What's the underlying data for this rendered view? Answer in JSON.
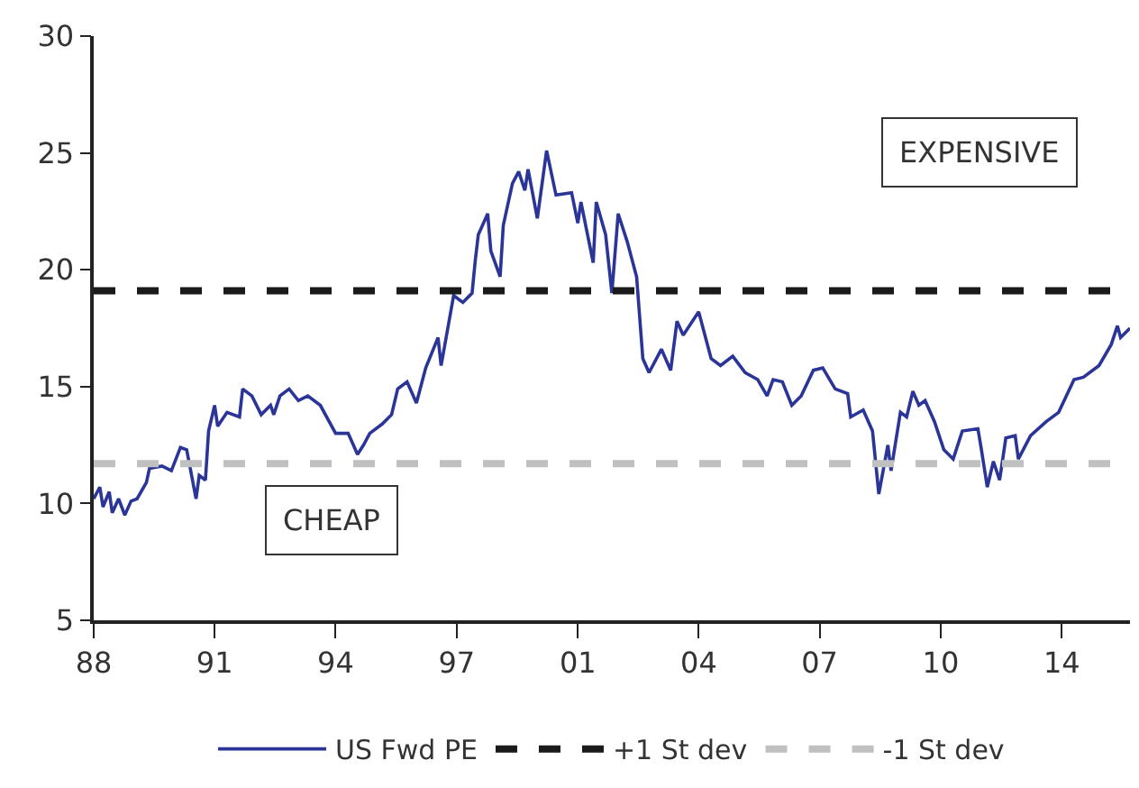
{
  "chart_data": {
    "type": "line",
    "x": [
      "1988-01",
      "1988-03",
      "1988-04",
      "1988-06",
      "1988-07",
      "1988-09",
      "1988-11",
      "1989-01",
      "1989-03",
      "1989-06",
      "1989-07",
      "1989-11",
      "1990-02",
      "1990-05",
      "1990-07",
      "1990-10",
      "1990-11",
      "1991-01",
      "1991-02",
      "1991-04",
      "1991-05",
      "1991-08",
      "1991-12",
      "1992-01",
      "1992-04",
      "1992-07",
      "1992-10",
      "1992-11",
      "1993-01",
      "1993-04",
      "1993-07",
      "1993-10",
      "1994-02",
      "1994-07",
      "1994-11",
      "1995-02",
      "1995-04",
      "1995-06",
      "1995-10",
      "1996-01",
      "1996-03",
      "1996-06",
      "1996-09",
      "1996-12",
      "1997-04",
      "1997-05",
      "1997-09",
      "1997-12",
      "1998-03",
      "1998-04",
      "1998-05",
      "1998-08",
      "1998-09",
      "1998-12",
      "1999-01",
      "1999-04",
      "1999-06",
      "1999-08",
      "1999-09",
      "1999-12",
      "2000-03",
      "2000-06",
      "2000-11",
      "2001-01",
      "2001-02",
      "2001-06",
      "2001-07",
      "2001-10",
      "2001-12",
      "2002-02",
      "2002-05",
      "2002-08",
      "2002-10",
      "2002-12",
      "2003-04",
      "2003-07",
      "2003-09",
      "2003-11",
      "2004-04",
      "2004-08",
      "2004-11",
      "2005-03",
      "2005-07",
      "2005-11",
      "2006-02",
      "2006-04",
      "2006-07",
      "2006-10",
      "2007-01",
      "2007-05",
      "2007-08",
      "2007-12",
      "2008-04",
      "2008-05",
      "2008-09",
      "2008-12",
      "2009-02",
      "2009-05",
      "2009-06",
      "2009-09",
      "2009-11",
      "2010-01",
      "2010-03",
      "2010-05",
      "2010-08",
      "2010-11",
      "2011-02",
      "2011-05",
      "2011-10",
      "2011-11",
      "2012-01",
      "2012-03",
      "2012-05",
      "2012-07",
      "2012-10",
      "2012-11",
      "2013-03",
      "2013-08",
      "2013-12",
      "2014-05",
      "2014-08",
      "2015-01",
      "2015-05",
      "2015-07",
      "2015-08",
      "2015-11"
    ],
    "series": [
      {
        "name": "US Fwd PE",
        "color": "#2b3598",
        "values": [
          10.2,
          10.7,
          9.85,
          10.5,
          9.6,
          10.2,
          9.5,
          10.1,
          10.2,
          10.9,
          11.5,
          11.6,
          11.4,
          12.4,
          12.3,
          10.2,
          11.2,
          11.0,
          13.1,
          14.2,
          13.3,
          13.9,
          13.7,
          14.9,
          14.6,
          13.8,
          14.2,
          13.8,
          14.6,
          14.9,
          14.4,
          14.6,
          14.2,
          13.0,
          13.0,
          12.1,
          12.5,
          13.0,
          13.4,
          13.8,
          14.9,
          15.2,
          14.3,
          15.8,
          17.1,
          15.9,
          18.9,
          18.6,
          19.0,
          20.4,
          21.5,
          22.4,
          20.8,
          19.7,
          21.9,
          23.7,
          24.2,
          23.4,
          24.3,
          22.2,
          25.1,
          23.2,
          23.3,
          22.0,
          22.9,
          20.3,
          22.9,
          21.5,
          19.0,
          22.4,
          21.2,
          19.7,
          16.2,
          15.6,
          16.6,
          15.7,
          17.8,
          17.2,
          18.2,
          16.2,
          15.9,
          16.3,
          15.6,
          15.3,
          14.6,
          15.3,
          15.2,
          14.2,
          14.6,
          15.7,
          15.8,
          14.9,
          14.7,
          13.7,
          14.0,
          13.1,
          10.4,
          12.5,
          11.4,
          13.9,
          13.7,
          14.8,
          14.2,
          14.4,
          13.5,
          12.3,
          11.9,
          13.1,
          13.2,
          12.4,
          10.7,
          11.8,
          11.0,
          12.8,
          12.9,
          11.9,
          12.9,
          13.5,
          13.9,
          15.3,
          15.4,
          15.9,
          16.8,
          17.6,
          17.1,
          17.5
        ]
      }
    ],
    "ref_lines": [
      {
        "axis": "y",
        "value": 19.1,
        "label": "+1 St dev",
        "color": "#1a1a1a",
        "line_style": "dashed"
      },
      {
        "axis": "y",
        "value": 11.7,
        "label": "-1 St dev",
        "color": "#c0c0c0",
        "line_style": "dashed"
      }
    ],
    "annotations": [
      "EXPENSIVE",
      "CHEAP"
    ],
    "xlim": [
      "1988-01",
      "2015-11"
    ],
    "xticks": [
      {
        "value": "1988-01",
        "label": "88"
      },
      {
        "value": "1991-04",
        "label": "91"
      },
      {
        "value": "1994-07",
        "label": "94"
      },
      {
        "value": "1997-10",
        "label": "97"
      },
      {
        "value": "2001-01",
        "label": "01"
      },
      {
        "value": "2004-04",
        "label": "04"
      },
      {
        "value": "2007-07",
        "label": "07"
      },
      {
        "value": "2010-10",
        "label": "10"
      },
      {
        "value": "2014-01",
        "label": "14"
      }
    ],
    "ylim": [
      5,
      30
    ],
    "yticks": [
      5,
      10,
      15,
      20,
      25,
      30
    ],
    "legend": "bottom",
    "marker": "none",
    "line_style": "solid"
  }
}
